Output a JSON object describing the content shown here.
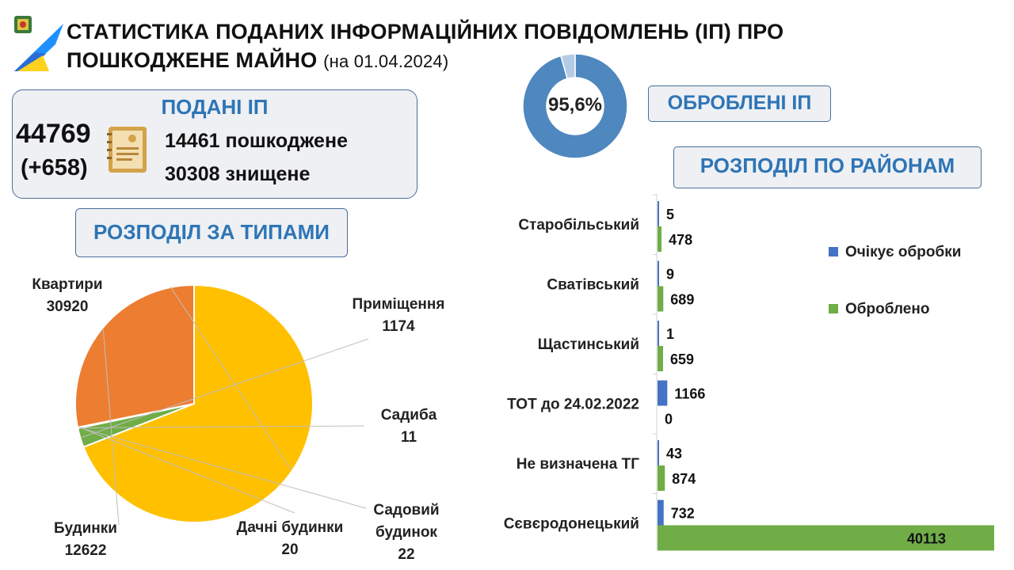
{
  "title": {
    "line1": "СТАТИСТИКА ПОДАНИХ ІНФОРМАЦІЙНИХ ПОВІДОМЛЕНЬ (ІП) ПРО",
    "line2": "ПОШКОДЖЕНЕ МАЙНО",
    "date": "(на 01.04.2024)"
  },
  "submitted": {
    "label": "ПОДАНІ ІП",
    "total": "44769",
    "delta": "(+658)",
    "damaged": "14461 пошкоджене",
    "destroyed": "30308 знищене"
  },
  "processed": {
    "label": "ОБРОБЛЕНІ ІП",
    "percent_label": "95,6%",
    "percent_value": 95.6,
    "colors": {
      "done": "#4f87bf",
      "rest": "#b4cbe6"
    }
  },
  "types_label": "РОЗПОДІЛ ЗА ТИПАМИ",
  "districts_label": "РОЗПОДІЛ ПО РАЙОНАМ",
  "chart_data": [
    {
      "type": "pie",
      "categories": [
        "Квартири",
        "Приміщення",
        "Садиба",
        "Садовий будинок",
        "Дачні будинки",
        "Будинки"
      ],
      "values": [
        30920,
        1174,
        11,
        22,
        20,
        12622
      ],
      "label_lines": [
        [
          "Квартири",
          "30920"
        ],
        [
          "Приміщення",
          "1174"
        ],
        [
          "Садиба",
          "11"
        ],
        [
          "Садовий",
          "будинок",
          "22"
        ],
        [
          "Дачні будинки",
          "20"
        ],
        [
          "Будинки",
          "12622"
        ]
      ],
      "colors": [
        "#ffc000",
        "#70ad47",
        "#5b9bd5",
        "#a5a5a5",
        "#4472c4",
        "#ed7d31"
      ]
    },
    {
      "type": "bar",
      "orientation": "horizontal",
      "categories": [
        "Старобільський",
        "Сватівський",
        "Щастинський",
        "ТОТ до 24.02.2022",
        "Не визначена ТГ",
        "Сєвєродонецький"
      ],
      "series": [
        {
          "name": "Очікує обробки",
          "values": [
            5,
            9,
            1,
            1166,
            43,
            732
          ],
          "color": "#4472c4"
        },
        {
          "name": "Оброблено",
          "values": [
            478,
            689,
            659,
            0,
            874,
            40113
          ],
          "color": "#70ad47"
        }
      ],
      "legend": "right"
    }
  ]
}
